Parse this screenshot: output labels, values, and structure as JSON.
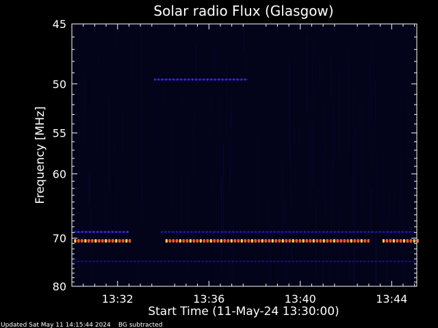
{
  "chart_data": {
    "type": "heatmap",
    "title": "Solar radio Flux (Glasgow)",
    "xlabel": "Start Time (11-May-24 13:30:00)",
    "ylabel": "Frequency [MHz]",
    "x_ticks": [
      "13:32",
      "13:36",
      "13:40",
      "13:44"
    ],
    "x_tick_minutes": [
      2,
      6,
      10,
      14
    ],
    "xlim_minutes": [
      0,
      15.1
    ],
    "y_ticks": [
      45,
      50,
      55,
      60,
      70,
      80
    ],
    "ylim": [
      45,
      80
    ],
    "emission_bands": [
      {
        "frequency_mhz": 49.6,
        "start_minute": 3.6,
        "end_minute": 7.7,
        "color": "#3a2cff",
        "intensity": "medium"
      },
      {
        "frequency_mhz": 68.9,
        "start_minute": 0.1,
        "end_minute": 2.5,
        "color": "#3a2cff",
        "intensity": "medium"
      },
      {
        "frequency_mhz": 68.9,
        "start_minute": 3.9,
        "end_minute": 15.0,
        "color": "#2a22c8",
        "intensity": "low"
      },
      {
        "frequency_mhz": 70.5,
        "start_minute": 0.1,
        "end_minute": 2.5,
        "color": "#ff5a2a",
        "intensity": "high"
      },
      {
        "frequency_mhz": 70.5,
        "start_minute": 4.1,
        "end_minute": 13.0,
        "color": "#ff5a2a",
        "intensity": "high"
      },
      {
        "frequency_mhz": 70.5,
        "start_minute": 13.6,
        "end_minute": 15.1,
        "color": "#ff5a2a",
        "intensity": "high"
      },
      {
        "frequency_mhz": 74.5,
        "start_minute": 0.1,
        "end_minute": 15.1,
        "color": "#1a1680",
        "intensity": "low"
      }
    ],
    "colors": {
      "background": "#000000",
      "plot_bg": "#03031a",
      "axis": "#ffffff"
    }
  },
  "footer": {
    "updated": "Updated Sat May 11 14:15:44 2024",
    "bg_note": "BG subtracted"
  }
}
